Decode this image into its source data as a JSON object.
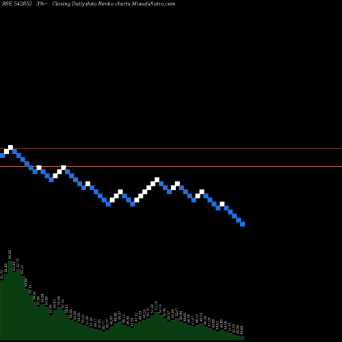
{
  "header": {
    "symbol": "BSE 542852",
    "pct": "3%~",
    "caption": "Closing Daily data  Renko  charts MunafaSutra.com"
  },
  "colors": {
    "background": "#000000",
    "up_brick": "#ffffff",
    "down_brick": "#1e73e8",
    "level_line": "#a0522d",
    "volume_fill": "#0b3d12",
    "volume_label": "#d0d0d0"
  },
  "chart_data": {
    "type": "renko",
    "brick_size_percent": 3,
    "levels": [
      0,
      -4.5
    ],
    "bricks": [
      {
        "dir": "down",
        "level": -1
      },
      {
        "dir": "up",
        "level": 0
      },
      {
        "dir": "up",
        "level": 1
      },
      {
        "dir": "down",
        "level": 0
      },
      {
        "dir": "down",
        "level": -1
      },
      {
        "dir": "down",
        "level": -2
      },
      {
        "dir": "down",
        "level": -3
      },
      {
        "dir": "down",
        "level": -4
      },
      {
        "dir": "down",
        "level": -5
      },
      {
        "dir": "up",
        "level": -4
      },
      {
        "dir": "down",
        "level": -5
      },
      {
        "dir": "down",
        "level": -6
      },
      {
        "dir": "down",
        "level": -7
      },
      {
        "dir": "up",
        "level": -6
      },
      {
        "dir": "up",
        "level": -5
      },
      {
        "dir": "up",
        "level": -4
      },
      {
        "dir": "down",
        "level": -5
      },
      {
        "dir": "down",
        "level": -6
      },
      {
        "dir": "down",
        "level": -7
      },
      {
        "dir": "down",
        "level": -8
      },
      {
        "dir": "down",
        "level": -9
      },
      {
        "dir": "up",
        "level": -8
      },
      {
        "dir": "down",
        "level": -9
      },
      {
        "dir": "down",
        "level": -10
      },
      {
        "dir": "down",
        "level": -11
      },
      {
        "dir": "down",
        "level": -12
      },
      {
        "dir": "down",
        "level": -13
      },
      {
        "dir": "up",
        "level": -12
      },
      {
        "dir": "up",
        "level": -11
      },
      {
        "dir": "up",
        "level": -10
      },
      {
        "dir": "down",
        "level": -11
      },
      {
        "dir": "down",
        "level": -12
      },
      {
        "dir": "down",
        "level": -13
      },
      {
        "dir": "up",
        "level": -12
      },
      {
        "dir": "up",
        "level": -11
      },
      {
        "dir": "up",
        "level": -10
      },
      {
        "dir": "up",
        "level": -9
      },
      {
        "dir": "up",
        "level": -8
      },
      {
        "dir": "up",
        "level": -7
      },
      {
        "dir": "down",
        "level": -8
      },
      {
        "dir": "down",
        "level": -9
      },
      {
        "dir": "down",
        "level": -10
      },
      {
        "dir": "up",
        "level": -9
      },
      {
        "dir": "up",
        "level": -8
      },
      {
        "dir": "down",
        "level": -9
      },
      {
        "dir": "down",
        "level": -10
      },
      {
        "dir": "down",
        "level": -11
      },
      {
        "dir": "down",
        "level": -12
      },
      {
        "dir": "up",
        "level": -11
      },
      {
        "dir": "up",
        "level": -10
      },
      {
        "dir": "down",
        "level": -11
      },
      {
        "dir": "down",
        "level": -12
      },
      {
        "dir": "down",
        "level": -13
      },
      {
        "dir": "down",
        "level": -14
      },
      {
        "dir": "up",
        "level": -13
      },
      {
        "dir": "down",
        "level": -14
      },
      {
        "dir": "down",
        "level": -15
      },
      {
        "dir": "down",
        "level": -16
      },
      {
        "dir": "down",
        "level": -17
      },
      {
        "dir": "down",
        "level": -18
      }
    ],
    "volume": [
      {
        "label": "61.72",
        "v": 0.72
      },
      {
        "label": "64.18",
        "v": 0.8
      },
      {
        "label": "66.28",
        "v": 0.96
      },
      {
        "label": "64.49",
        "v": 0.82
      },
      {
        "label": "62.75",
        "v": 0.86
      },
      {
        "label": "61.22",
        "v": 0.78
      },
      {
        "label": "59.84",
        "v": 0.62
      },
      {
        "label": "58.11",
        "v": 0.54
      },
      {
        "label": "56.92",
        "v": 0.46
      },
      {
        "label": "57.88",
        "v": 0.4
      },
      {
        "label": "56.08",
        "v": 0.43
      },
      {
        "label": "54.80",
        "v": 0.4
      },
      {
        "label": "53.44",
        "v": 0.3
      },
      {
        "label": "54.87",
        "v": 0.36
      },
      {
        "label": "55.96",
        "v": 0.4
      },
      {
        "label": "57.34",
        "v": 0.36
      },
      {
        "label": "56.17",
        "v": 0.3
      },
      {
        "label": "54.65",
        "v": 0.24
      },
      {
        "label": "53.25",
        "v": 0.22
      },
      {
        "label": "51.95",
        "v": 0.2
      },
      {
        "label": "50.91",
        "v": 0.18
      },
      {
        "label": "52.06",
        "v": 0.16
      },
      {
        "label": "50.36",
        "v": 0.14
      },
      {
        "label": "49.17",
        "v": 0.13
      },
      {
        "label": "47.95",
        "v": 0.12
      },
      {
        "label": "46.77",
        "v": 0.1
      },
      {
        "label": "45.77",
        "v": 0.12
      },
      {
        "label": "46.97",
        "v": 0.16
      },
      {
        "label": "48.18",
        "v": 0.2
      },
      {
        "label": "49.37",
        "v": 0.22
      },
      {
        "label": "48.12",
        "v": 0.18
      },
      {
        "label": "46.98",
        "v": 0.16
      },
      {
        "label": "45.81",
        "v": 0.14
      },
      {
        "label": "47.12",
        "v": 0.2
      },
      {
        "label": "48.33",
        "v": 0.22
      },
      {
        "label": "49.53",
        "v": 0.24
      },
      {
        "label": "50.70",
        "v": 0.26
      },
      {
        "label": "51.98",
        "v": 0.3
      },
      {
        "label": "53.29",
        "v": 0.34
      },
      {
        "label": "52.03",
        "v": 0.3
      },
      {
        "label": "50.80",
        "v": 0.26
      },
      {
        "label": "49.57",
        "v": 0.22
      },
      {
        "label": "50.86",
        "v": 0.24
      },
      {
        "label": "52.07",
        "v": 0.26
      },
      {
        "label": "50.84",
        "v": 0.22
      },
      {
        "label": "49.65",
        "v": 0.2
      },
      {
        "label": "48.38",
        "v": 0.18
      },
      {
        "label": "47.07",
        "v": 0.16
      },
      {
        "label": "48.33",
        "v": 0.18
      },
      {
        "label": "49.51",
        "v": 0.2
      },
      {
        "label": "48.28",
        "v": 0.16
      },
      {
        "label": "47.09",
        "v": 0.14
      },
      {
        "label": "45.89",
        "v": 0.12
      },
      {
        "label": "44.61",
        "v": 0.1
      },
      {
        "label": "45.80",
        "v": 0.12
      },
      {
        "label": "44.58",
        "v": 0.1
      },
      {
        "label": "43.30",
        "v": 0.08
      },
      {
        "label": "42.16",
        "v": 0.06
      },
      {
        "label": "40.96",
        "v": 0.05
      },
      {
        "label": "39.85",
        "v": 0.04
      }
    ]
  }
}
